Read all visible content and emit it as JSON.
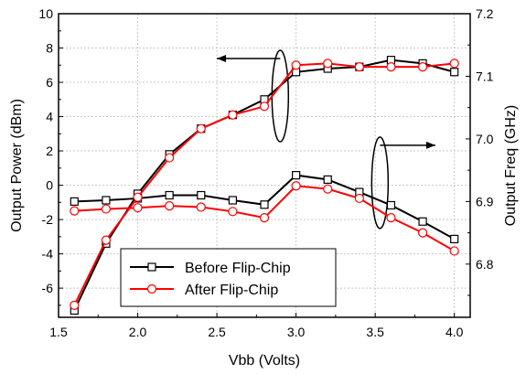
{
  "chart_data": {
    "type": "line",
    "title": "",
    "xlabel": "Vbb (Volts)",
    "ylabel_left": "Output Power (dBm)",
    "ylabel_right": "Output Freq (GHz)",
    "xlim": [
      1.5,
      4.1
    ],
    "ylim_left": [
      -7.7,
      10
    ],
    "ylim_right": [
      6.715,
      7.2
    ],
    "x_ticks": [
      "1.5",
      "2.0",
      "2.5",
      "3.0",
      "3.5",
      "4.0"
    ],
    "y_left_ticks": [
      "-6",
      "-4",
      "-2",
      "0",
      "2",
      "4",
      "6",
      "8",
      "10"
    ],
    "y_right_ticks": [
      "6.8",
      "6.9",
      "7.0",
      "7.1",
      "7.2"
    ],
    "grid": true,
    "legend_position": "bottom-left",
    "x": [
      1.6,
      1.8,
      2.0,
      2.2,
      2.4,
      2.6,
      2.8,
      3.0,
      3.2,
      3.4,
      3.6,
      3.8,
      4.0
    ],
    "series": [
      {
        "name": "Before Flip-Chip",
        "color": "#000000",
        "marker": "square",
        "power_dbm": [
          -7.3,
          -3.4,
          -0.5,
          1.8,
          3.3,
          4.1,
          5.0,
          6.6,
          6.8,
          6.9,
          7.3,
          7.1,
          6.6
        ],
        "freq_ghz": [
          6.9,
          6.902,
          6.905,
          6.91,
          6.91,
          6.902,
          6.895,
          6.942,
          6.935,
          6.915,
          6.894,
          6.868,
          6.84
        ]
      },
      {
        "name": "After Flip-Chip",
        "color": "#ff0000",
        "marker": "circle",
        "power_dbm": [
          -7.0,
          -3.2,
          -0.7,
          1.6,
          3.3,
          4.1,
          4.6,
          7.0,
          7.1,
          6.9,
          6.9,
          6.9,
          7.1
        ],
        "freq_ghz": [
          6.885,
          6.888,
          6.89,
          6.893,
          6.891,
          6.884,
          6.874,
          6.925,
          6.92,
          6.905,
          6.874,
          6.85,
          6.821
        ]
      }
    ],
    "annotations": [
      {
        "kind": "ellipse-arrow",
        "axis": "left",
        "x": 2.9,
        "y": 5.2,
        "arrow_to_x": 2.5
      },
      {
        "kind": "ellipse-arrow",
        "axis": "right",
        "x": 3.53,
        "y": 6.93,
        "arrow_to_x": 3.88
      }
    ]
  }
}
